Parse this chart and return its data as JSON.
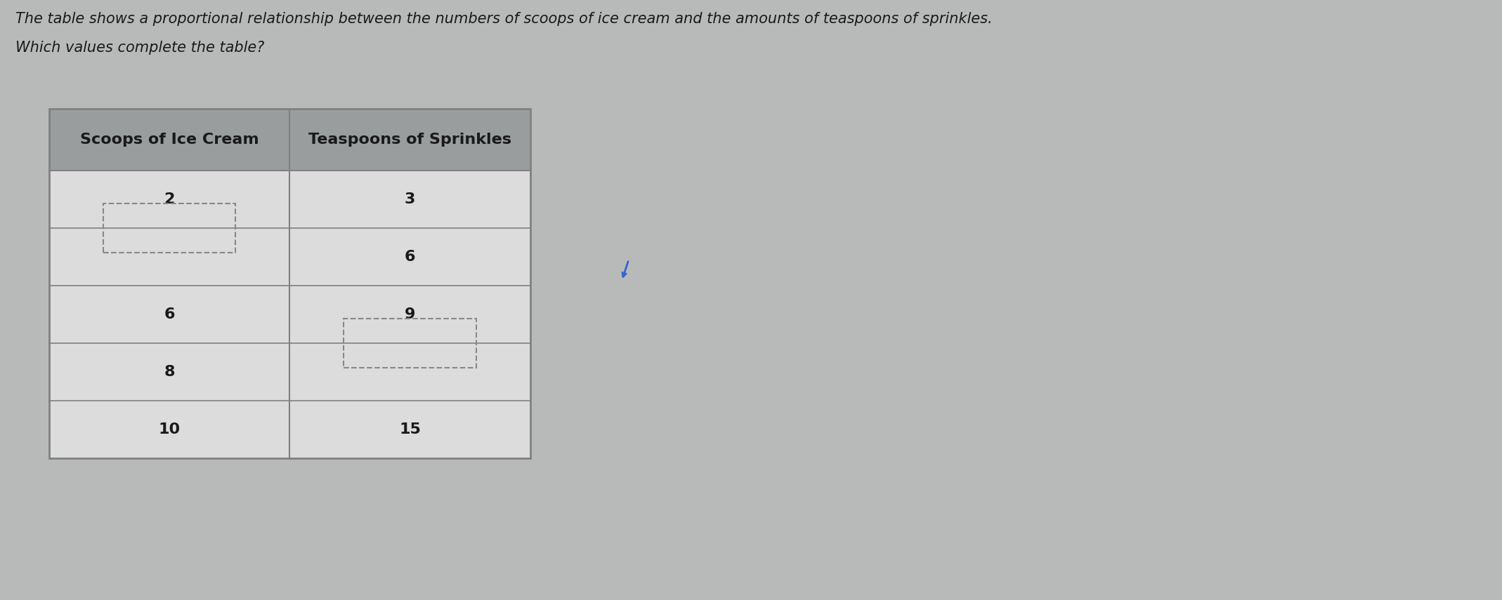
{
  "title_line1": "The table shows a proportional relationship between the numbers of scoops of ice cream and the amounts of teaspoons of sprinkles.",
  "title_line2": "Which values complete the table?",
  "col1_header": "Scoops of Ice Cream",
  "col2_header": "Teaspoons of Sprinkles",
  "rows": [
    {
      "col1": "2",
      "col2": "3"
    },
    {
      "col1": "",
      "col2": "6"
    },
    {
      "col1": "6",
      "col2": "9"
    },
    {
      "col1": "8",
      "col2": ""
    },
    {
      "col1": "10",
      "col2": "15"
    }
  ],
  "bg_color": "#b8baba",
  "header_bg": "#9a9d9e",
  "row_bg": "#dcdcdc",
  "border_color": "#808080",
  "text_color": "#1a1a1a",
  "dashed_box_color": "#888888",
  "fig_width": 21.38,
  "fig_height": 8.55,
  "title_fontsize": 15,
  "header_fontsize": 16,
  "cell_fontsize": 16
}
